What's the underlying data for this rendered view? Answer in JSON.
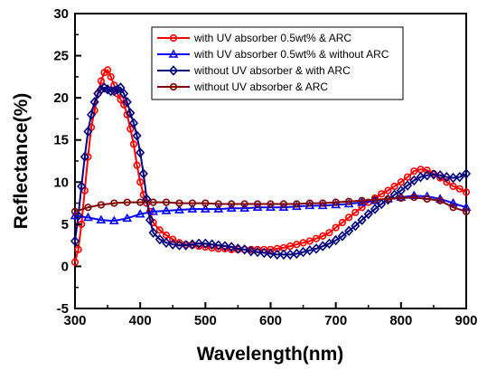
{
  "chart_data": {
    "type": "line",
    "title": "",
    "xlabel": "Wavelength(nm)",
    "ylabel": "Reflectance(%)",
    "xlim": [
      300,
      900
    ],
    "ylim": [
      -5,
      30
    ],
    "xticks": [
      300,
      400,
      500,
      600,
      700,
      800,
      900
    ],
    "yticks": [
      -5,
      0,
      5,
      10,
      15,
      20,
      25,
      30
    ],
    "grid": false,
    "legend_position": "top-right",
    "series": [
      {
        "name": "with UV absorber 0.5wt% & ARC",
        "color": "#ff0000",
        "marker": "circle",
        "x": [
          300,
          305,
          310,
          315,
          320,
          325,
          330,
          335,
          340,
          345,
          350,
          355,
          360,
          365,
          370,
          375,
          380,
          385,
          390,
          395,
          400,
          405,
          410,
          415,
          420,
          430,
          440,
          450,
          460,
          470,
          480,
          490,
          500,
          510,
          520,
          530,
          540,
          550,
          560,
          570,
          580,
          590,
          600,
          610,
          620,
          630,
          640,
          650,
          660,
          670,
          680,
          690,
          700,
          710,
          720,
          730,
          740,
          750,
          760,
          770,
          780,
          790,
          800,
          810,
          820,
          830,
          840,
          850,
          860,
          870,
          880,
          890,
          900
        ],
        "y": [
          0.5,
          2,
          5,
          9,
          13,
          16.5,
          18.5,
          20.5,
          22,
          23,
          23.3,
          22.5,
          21.5,
          20.5,
          19.8,
          19.2,
          18,
          16.3,
          14.5,
          12,
          10,
          8.5,
          7.5,
          6.5,
          5.2,
          4.3,
          3.7,
          3.2,
          2.8,
          2.6,
          2.5,
          2.4,
          2.3,
          2.2,
          2.1,
          2.1,
          2,
          2,
          2,
          2,
          2,
          2,
          2,
          2.1,
          2.2,
          2.4,
          2.6,
          2.8,
          3,
          3.3,
          3.6,
          4,
          4.6,
          5.2,
          5.8,
          6.4,
          7,
          7.6,
          8.1,
          8.6,
          9,
          9.5,
          10,
          10.6,
          11.3,
          11.5,
          11.4,
          11,
          10.5,
          10,
          9.5,
          9.2,
          8.8
        ]
      },
      {
        "name": "with UV absorber 0.5wt% & without ARC",
        "color": "#0000ff",
        "marker": "triangle",
        "x": [
          300,
          320,
          340,
          360,
          380,
          400,
          420,
          440,
          460,
          480,
          500,
          520,
          540,
          560,
          580,
          600,
          620,
          640,
          660,
          680,
          700,
          720,
          740,
          760,
          780,
          800,
          820,
          840,
          860,
          880,
          900
        ],
        "y": [
          6,
          5.8,
          5.5,
          5.4,
          5.7,
          6.2,
          6.5,
          6.6,
          6.7,
          6.8,
          6.8,
          6.8,
          6.9,
          6.9,
          7,
          7,
          7,
          7.1,
          7.2,
          7.2,
          7.3,
          7.4,
          7.6,
          7.8,
          8,
          8.2,
          8.4,
          8.3,
          8,
          7.5,
          7
        ]
      },
      {
        "name": "without UV absorber & with ARC",
        "color": "#000080",
        "marker": "diamond",
        "x": [
          300,
          305,
          310,
          315,
          320,
          325,
          330,
          335,
          340,
          345,
          350,
          355,
          360,
          365,
          370,
          375,
          380,
          385,
          390,
          395,
          400,
          405,
          410,
          415,
          420,
          430,
          440,
          450,
          460,
          470,
          480,
          490,
          500,
          510,
          520,
          530,
          540,
          550,
          560,
          570,
          580,
          590,
          600,
          610,
          620,
          630,
          640,
          650,
          660,
          670,
          680,
          690,
          700,
          710,
          720,
          730,
          740,
          750,
          760,
          770,
          780,
          790,
          800,
          810,
          820,
          830,
          840,
          850,
          860,
          870,
          880,
          890,
          900
        ],
        "y": [
          3,
          6,
          9.5,
          13,
          16,
          18,
          19.5,
          20.5,
          21,
          21.2,
          21,
          20.8,
          20.8,
          21,
          21.2,
          20.5,
          19.5,
          18.2,
          17,
          15.5,
          13.5,
          11,
          8,
          5.5,
          4,
          3.2,
          2.8,
          2.6,
          2.5,
          2.5,
          2.6,
          2.7,
          2.7,
          2.6,
          2.5,
          2.4,
          2.3,
          2.1,
          2,
          1.8,
          1.7,
          1.6,
          1.5,
          1.4,
          1.4,
          1.4,
          1.5,
          1.7,
          1.9,
          2.1,
          2.4,
          2.7,
          3.1,
          3.6,
          4.2,
          4.8,
          5.5,
          6.2,
          6.8,
          7.4,
          7.9,
          8.5,
          9,
          9.6,
          10.2,
          10.6,
          10.8,
          10.9,
          10.8,
          10.6,
          10.5,
          10.6,
          11
        ]
      },
      {
        "name": "without UV absorber & ARC",
        "color": "#800000",
        "marker": "circle",
        "x": [
          300,
          320,
          340,
          360,
          380,
          400,
          420,
          440,
          460,
          480,
          500,
          520,
          540,
          560,
          580,
          600,
          620,
          640,
          660,
          680,
          700,
          720,
          740,
          760,
          780,
          800,
          820,
          840,
          860,
          880,
          900
        ],
        "y": [
          6.5,
          7,
          7.3,
          7.5,
          7.6,
          7.6,
          7.6,
          7.6,
          7.5,
          7.5,
          7.5,
          7.4,
          7.4,
          7.4,
          7.4,
          7.4,
          7.4,
          7.4,
          7.5,
          7.5,
          7.6,
          7.7,
          7.8,
          7.9,
          8,
          8.1,
          8.2,
          8,
          7.8,
          7,
          6.5
        ]
      }
    ]
  }
}
